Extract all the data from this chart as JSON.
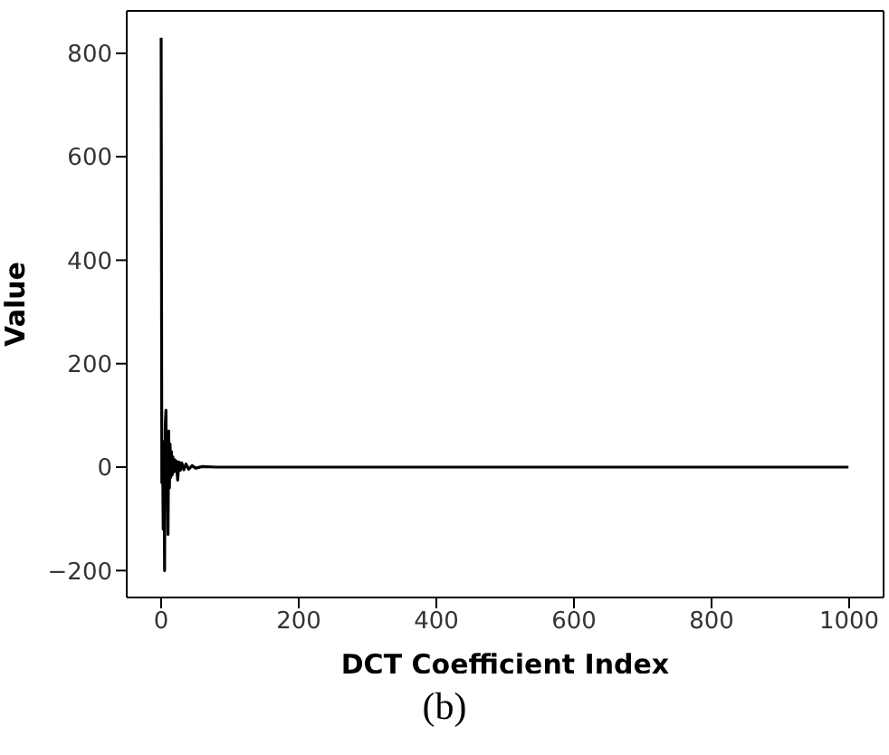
{
  "chart_data": {
    "type": "line",
    "xlabel": "DCT Coefficient Index",
    "ylabel": "Value",
    "annotations": [
      "(b)"
    ],
    "x": [
      0,
      1,
      2,
      3,
      4,
      5,
      6,
      7,
      8,
      9,
      10,
      11,
      12,
      13,
      14,
      15,
      16,
      17,
      18,
      19,
      20,
      22,
      24,
      26,
      28,
      30,
      33,
      36,
      40,
      45,
      50,
      60,
      80,
      100,
      200,
      300,
      400,
      500,
      600,
      700,
      800,
      900,
      999
    ],
    "series": [
      {
        "color": "#000000",
        "values": [
          830,
          -30,
          50,
          -120,
          30,
          -200,
          80,
          110,
          -60,
          60,
          -130,
          70,
          -40,
          45,
          -20,
          30,
          -15,
          20,
          -10,
          15,
          -8,
          12,
          -25,
          10,
          -6,
          8,
          -5,
          6,
          -4,
          3,
          -2,
          1,
          0,
          0,
          0,
          0,
          0,
          0,
          0,
          0,
          0,
          0,
          0
        ]
      }
    ],
    "xlim": [
      -50,
      1050
    ],
    "xticks": [
      0,
      200,
      400,
      600,
      800,
      1000
    ],
    "ylim": [
      -252,
      882
    ],
    "yticks": [
      {
        "value": -200,
        "label": "−200"
      },
      0,
      200,
      400,
      600,
      800
    ],
    "grid": false,
    "legend": false,
    "marker": "none",
    "line_style": "solid"
  }
}
